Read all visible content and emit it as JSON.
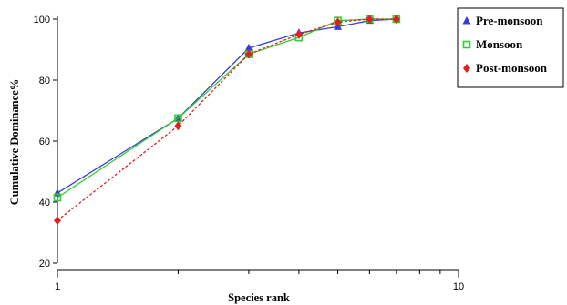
{
  "chart_data": {
    "type": "line",
    "xlabel": "Species rank",
    "ylabel": "Cumulative Dominance%",
    "x_scale": "log",
    "xlim": [
      1,
      10
    ],
    "ylim": [
      20,
      100
    ],
    "x_ticks": [
      1,
      10
    ],
    "y_ticks": [
      20,
      40,
      60,
      80,
      100
    ],
    "grid": false,
    "legend_position": "top-right",
    "x": [
      1,
      2,
      3,
      4,
      5,
      6,
      7
    ],
    "series": [
      {
        "name": "Pre-monsoon",
        "color": "#3b3bd8",
        "marker": "triangle",
        "values": [
          43,
          67.5,
          90.5,
          95.5,
          97.5,
          99.5,
          100
        ]
      },
      {
        "name": "Monsoon",
        "color": "#33cc33",
        "marker": "square",
        "values": [
          41.5,
          67.5,
          88.5,
          94,
          99.5,
          100,
          100
        ]
      },
      {
        "name": "Post-monsoon",
        "color": "#e02020",
        "marker": "diamond",
        "values": [
          34,
          65,
          88.5,
          95,
          99,
          100,
          100
        ]
      }
    ]
  }
}
